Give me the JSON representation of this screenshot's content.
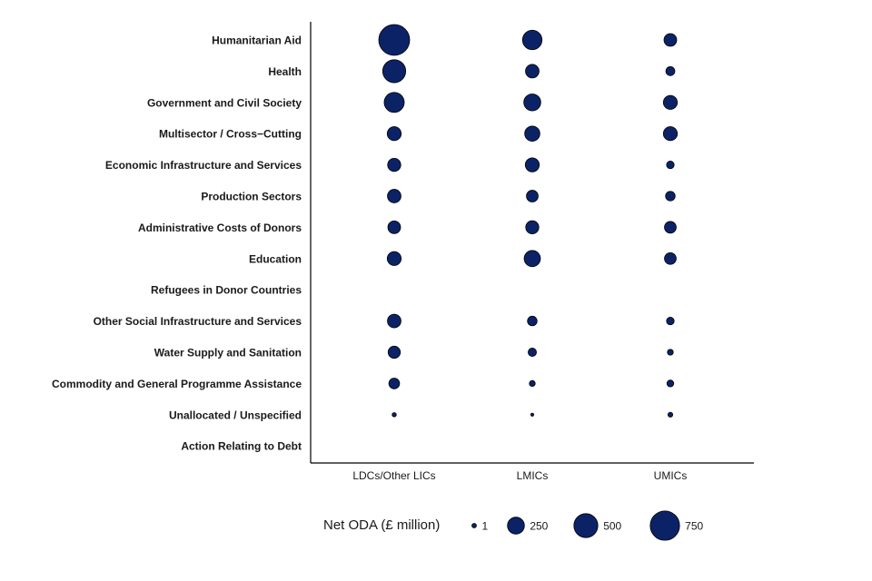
{
  "chart_data": {
    "type": "scatter",
    "subtype": "bubble",
    "title": "",
    "xlabel": "",
    "ylabel": "",
    "categories_y": [
      "Humanitarian Aid",
      "Health",
      "Government and Civil Society",
      "Multisector / Cross−Cutting",
      "Economic Infrastructure and Services",
      "Production Sectors",
      "Administrative Costs of Donors",
      "Education",
      "Refugees in Donor Countries",
      "Other Social Infrastructure and Services",
      "Water Supply and Sanitation",
      "Commodity and General Programme Assistance",
      "Unallocated / Unspecified",
      "Action Relating to Debt"
    ],
    "categories_x": [
      "LDCs/Other LICs",
      "LMICs",
      "UMICs"
    ],
    "series": [
      {
        "name": "LDCs/Other LICs",
        "values": [
          830,
          460,
          350,
          170,
          150,
          160,
          140,
          170,
          0,
          160,
          130,
          100,
          15,
          0
        ]
      },
      {
        "name": "LMICs",
        "values": [
          330,
          160,
          250,
          200,
          170,
          120,
          150,
          230,
          0,
          80,
          60,
          30,
          8,
          0
        ]
      },
      {
        "name": "UMICs",
        "values": [
          140,
          70,
          170,
          170,
          50,
          80,
          120,
          120,
          0,
          50,
          30,
          40,
          20,
          0
        ]
      }
    ],
    "legend": {
      "title": "Net ODA (£ million)",
      "entries": [
        {
          "label": "1",
          "value": 1
        },
        {
          "label": "250",
          "value": 250
        },
        {
          "label": "500",
          "value": 500
        },
        {
          "label": "750",
          "value": 750
        }
      ],
      "placement": "bottom"
    },
    "size_scale": {
      "max_value": 830
    },
    "colors": {
      "bubble_fill": "#0b2366",
      "bubble_stroke": "#000000"
    }
  }
}
